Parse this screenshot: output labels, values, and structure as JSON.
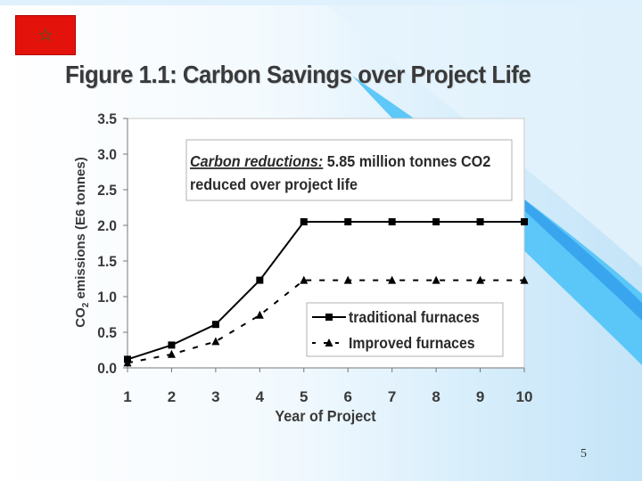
{
  "slide": {
    "title": "Figure 1.1: Carbon Savings over Project Life",
    "page_number": "5",
    "flag_icon": "morocco-flag-icon",
    "colors": {
      "flag_red": "#e3120b",
      "flag_star": "#0a7a2a",
      "accent_blue": "#4fc3f7"
    }
  },
  "chart_data": {
    "type": "line",
    "categories": [
      1,
      2,
      3,
      4,
      5,
      6,
      7,
      8,
      9,
      10
    ],
    "series": [
      {
        "name": "traditional furnaces",
        "values": [
          0.12,
          0.32,
          0.61,
          1.23,
          2.05,
          2.05,
          2.05,
          2.05,
          2.05,
          2.05
        ],
        "marker": "square",
        "line": "solid"
      },
      {
        "name": "Improved furnaces",
        "values": [
          0.07,
          0.19,
          0.37,
          0.74,
          1.23,
          1.23,
          1.23,
          1.23,
          1.23,
          1.23
        ],
        "marker": "triangle",
        "line": "dashed"
      }
    ],
    "xlabel": "Year of Project",
    "ylabel_main": "CO",
    "ylabel_sub": "2",
    "ylabel_rest": " emissions (E6 tonnes)",
    "ylim": [
      0,
      3.5
    ],
    "yticks": [
      "0.0",
      "0.5",
      "1.0",
      "1.5",
      "2.0",
      "2.5",
      "3.0",
      "3.5"
    ],
    "xticks": [
      "1",
      "2",
      "3",
      "4",
      "5",
      "6",
      "7",
      "8",
      "9",
      "10"
    ],
    "grid": false,
    "legend_position": "bottom-right",
    "annotation": {
      "label": "Carbon reductions:",
      "line1_rest": " 5.85 million tonnes CO2",
      "line2": "reduced over project life"
    }
  }
}
